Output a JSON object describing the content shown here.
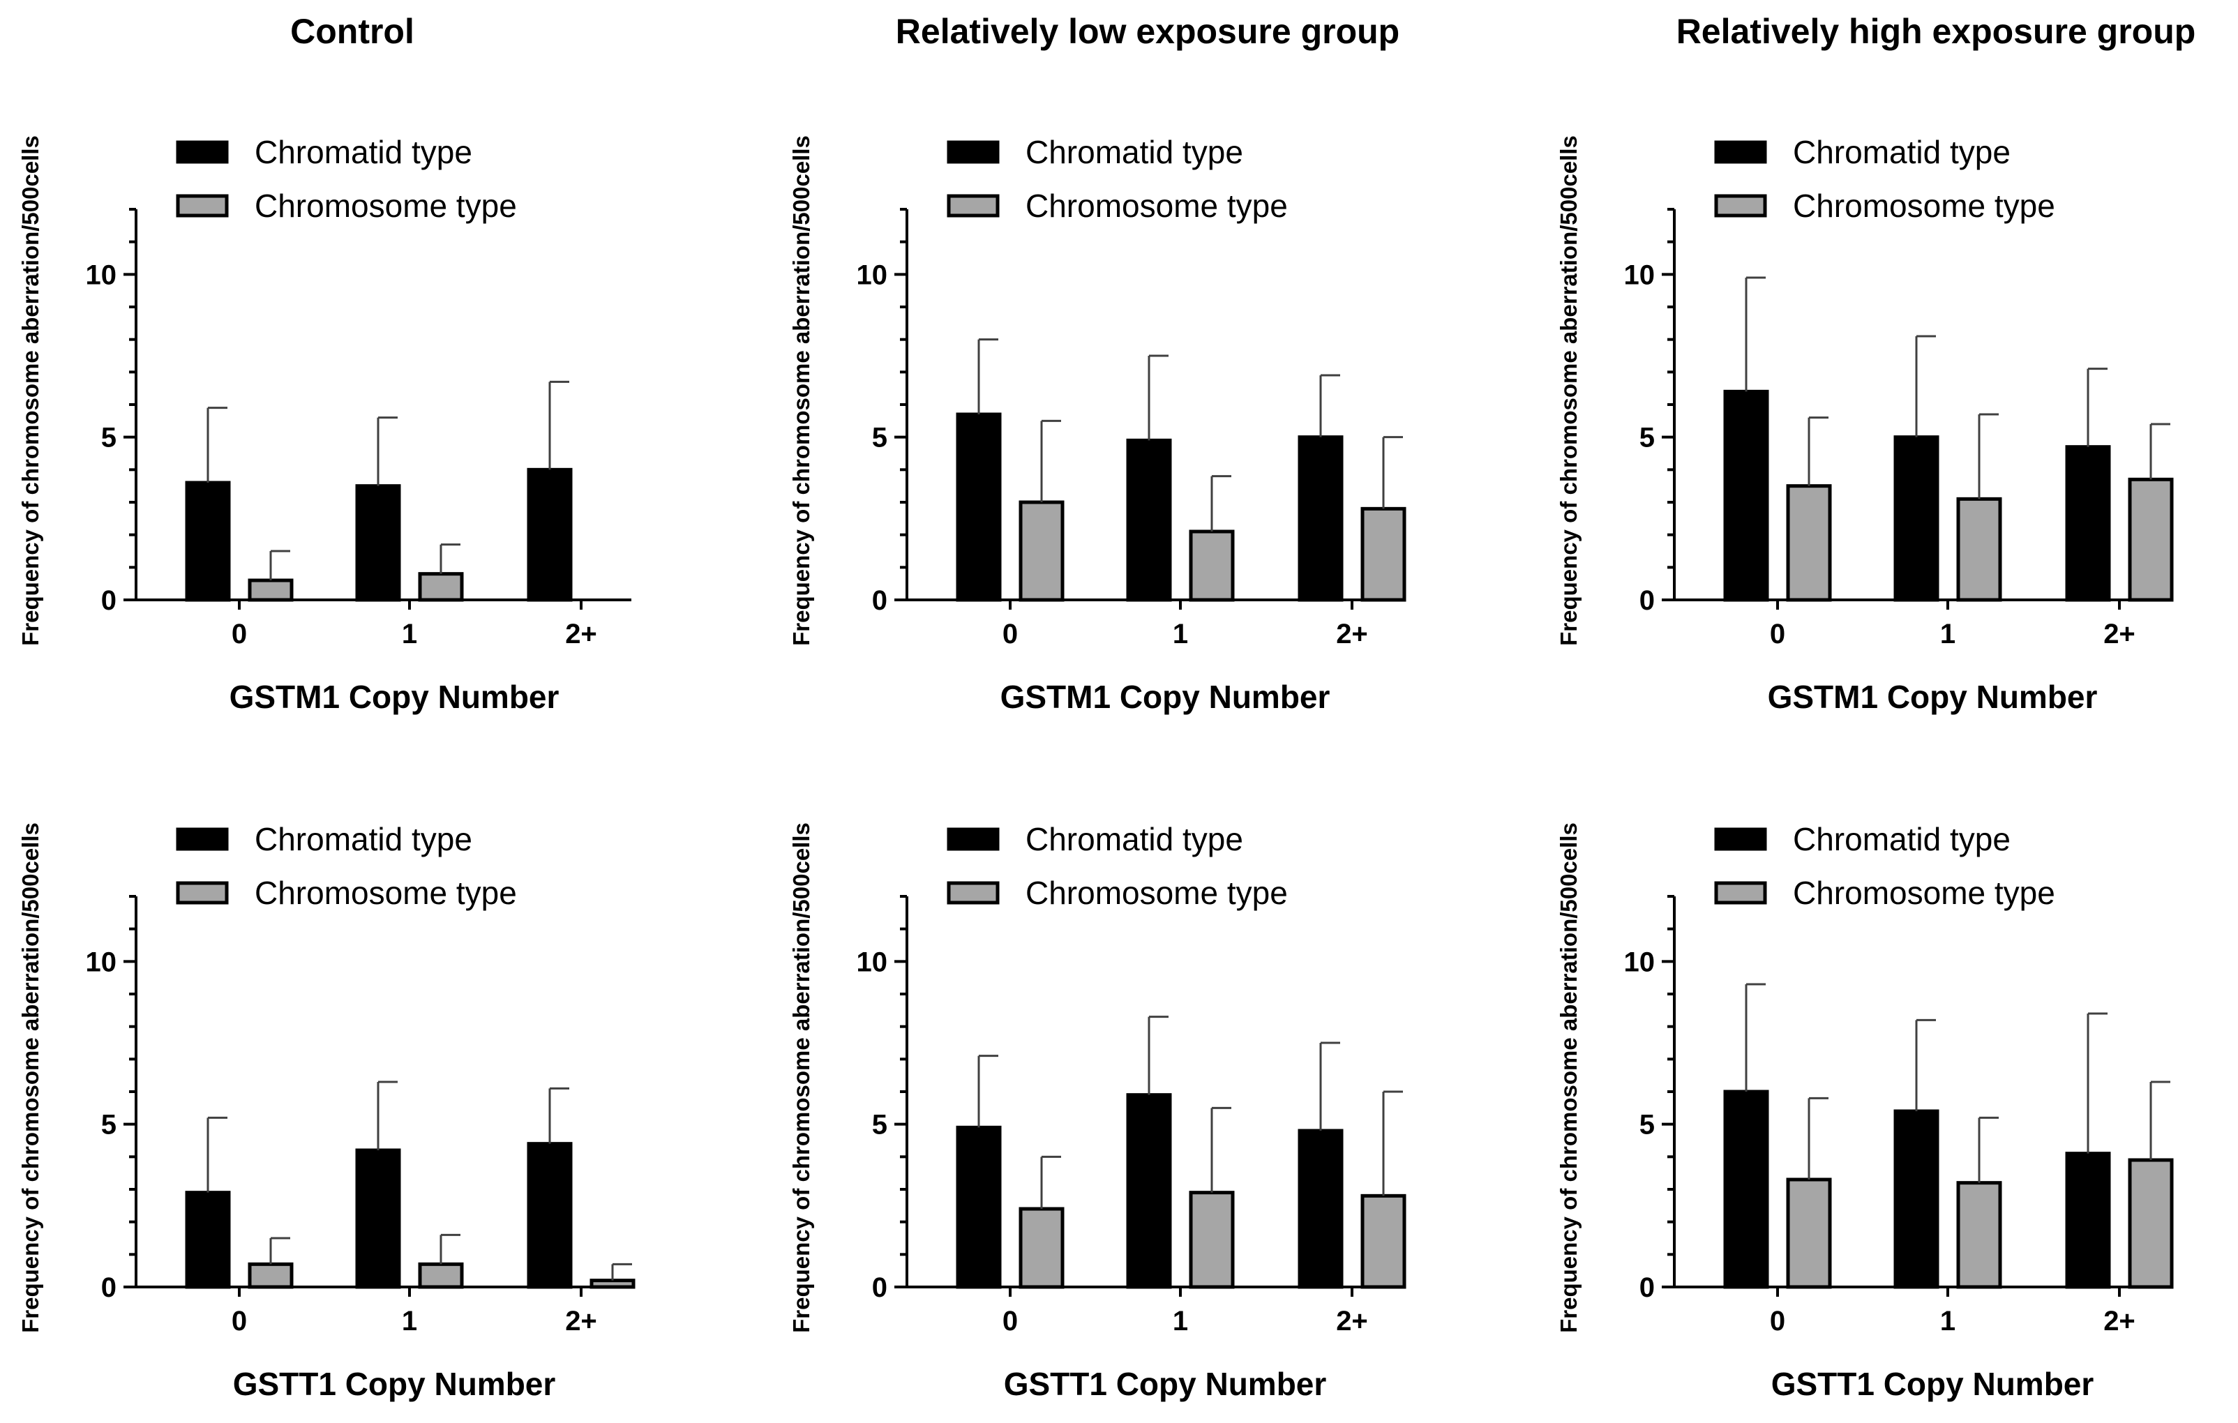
{
  "column_titles": [
    "Control",
    "Relatively low exposure group",
    "Relatively high exposure group"
  ],
  "colors": {
    "chromatid": "#000000",
    "chromosome": "#a6a6a6",
    "error_bar": "#404040"
  },
  "chart_data": [
    {
      "type": "bar",
      "group": "Control",
      "gene": "GSTM1",
      "xlabel": "GSTM1 Copy Number",
      "ylabel": "Frequency of chromosome aberration/500cells",
      "categories": [
        "0",
        "1",
        "2+"
      ],
      "ylim": [
        0,
        12
      ],
      "yticks": [
        0,
        5,
        10
      ],
      "legend": "top-left",
      "series": [
        {
          "name": "Chromatid type",
          "values": [
            3.6,
            3.5,
            4.0
          ],
          "errors": [
            2.3,
            2.1,
            2.7
          ]
        },
        {
          "name": "Chromosome type",
          "values": [
            0.6,
            0.8,
            0
          ],
          "errors": [
            0.9,
            0.9,
            0
          ]
        }
      ]
    },
    {
      "type": "bar",
      "group": "Relatively low exposure group",
      "gene": "GSTM1",
      "xlabel": "GSTM1 Copy Number",
      "ylabel": "Frequency of chromosome aberration/500cells",
      "categories": [
        "0",
        "1",
        "2+"
      ],
      "ylim": [
        0,
        12
      ],
      "yticks": [
        0,
        5,
        10
      ],
      "legend": "top-left",
      "series": [
        {
          "name": "Chromatid type",
          "values": [
            5.7,
            4.9,
            5.0
          ],
          "errors": [
            2.3,
            2.6,
            1.9
          ]
        },
        {
          "name": "Chromosome type",
          "values": [
            3.0,
            2.1,
            2.8
          ],
          "errors": [
            2.5,
            1.7,
            2.2
          ]
        }
      ]
    },
    {
      "type": "bar",
      "group": "Relatively high exposure group",
      "gene": "GSTM1",
      "xlabel": "GSTM1 Copy Number",
      "ylabel": "Frequency of chromosome aberration/500cells",
      "categories": [
        "0",
        "1",
        "2+"
      ],
      "ylim": [
        0,
        12
      ],
      "yticks": [
        0,
        5,
        10
      ],
      "legend": "top-left",
      "series": [
        {
          "name": "Chromatid type",
          "values": [
            6.4,
            5.0,
            4.7
          ],
          "errors": [
            3.5,
            3.1,
            2.4
          ]
        },
        {
          "name": "Chromosome type",
          "values": [
            3.5,
            3.1,
            3.7
          ],
          "errors": [
            2.1,
            2.6,
            1.7
          ]
        }
      ]
    },
    {
      "type": "bar",
      "group": "Control",
      "gene": "GSTT1",
      "xlabel": "GSTT1 Copy Number",
      "ylabel": "Frequency of chromosome aberration/500cells",
      "categories": [
        "0",
        "1",
        "2+"
      ],
      "ylim": [
        0,
        12
      ],
      "yticks": [
        0,
        5,
        10
      ],
      "legend": "top-left",
      "series": [
        {
          "name": "Chromatid type",
          "values": [
            2.9,
            4.2,
            4.4
          ],
          "errors": [
            2.3,
            2.1,
            1.7
          ]
        },
        {
          "name": "Chromosome type",
          "values": [
            0.7,
            0.7,
            0.2
          ],
          "errors": [
            0.8,
            0.9,
            0.5
          ]
        }
      ]
    },
    {
      "type": "bar",
      "group": "Relatively low exposure group",
      "gene": "GSTT1",
      "xlabel": "GSTT1 Copy Number",
      "ylabel": "Frequency of chromosome aberration/500cells",
      "categories": [
        "0",
        "1",
        "2+"
      ],
      "ylim": [
        0,
        12
      ],
      "yticks": [
        0,
        5,
        10
      ],
      "legend": "top-left",
      "series": [
        {
          "name": "Chromatid type",
          "values": [
            4.9,
            5.9,
            4.8
          ],
          "errors": [
            2.2,
            2.4,
            2.7
          ]
        },
        {
          "name": "Chromosome type",
          "values": [
            2.4,
            2.9,
            2.8
          ],
          "errors": [
            1.6,
            2.6,
            3.2
          ]
        }
      ]
    },
    {
      "type": "bar",
      "group": "Relatively high exposure group",
      "gene": "GSTT1",
      "xlabel": "GSTT1 Copy Number",
      "ylabel": "Frequency of chromosome aberration/500cells",
      "categories": [
        "0",
        "1",
        "2+"
      ],
      "ylim": [
        0,
        12
      ],
      "yticks": [
        0,
        5,
        10
      ],
      "legend": "top-left",
      "series": [
        {
          "name": "Chromatid type",
          "values": [
            6.0,
            5.4,
            4.1
          ],
          "errors": [
            3.3,
            2.8,
            4.3
          ]
        },
        {
          "name": "Chromosome type",
          "values": [
            3.3,
            3.2,
            3.9
          ],
          "errors": [
            2.5,
            2.0,
            2.4
          ]
        }
      ]
    }
  ]
}
